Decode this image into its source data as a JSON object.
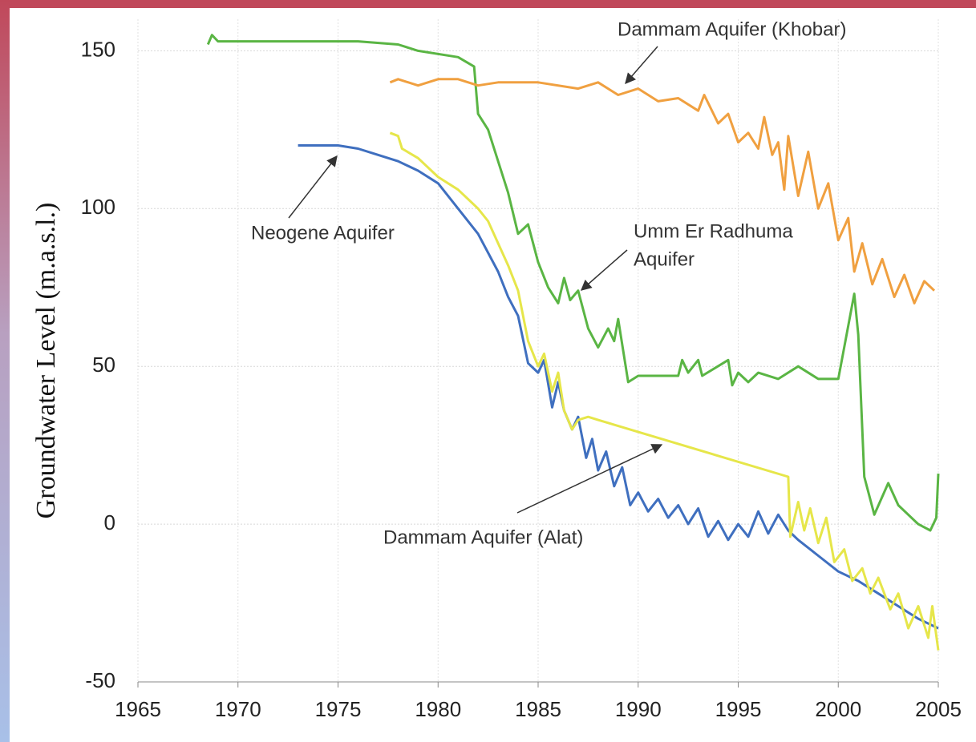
{
  "chart_data": {
    "type": "line",
    "y_label": "Groundwater Level (m.a.s.l.)",
    "xlim": [
      1965,
      2005
    ],
    "xticks": [
      1965,
      1970,
      1975,
      1980,
      1985,
      1990,
      1995,
      2000,
      2005
    ],
    "ylim": [
      -50,
      160
    ],
    "yticks": [
      -50,
      0,
      50,
      100,
      150
    ],
    "grid": true,
    "series": [
      {
        "color": "#5ab544",
        "x": [
          1968.5,
          1968.7,
          1969,
          1972,
          1976,
          1978,
          1979,
          1981,
          1981.8,
          1982,
          1982.5,
          1983,
          1983.5,
          1984,
          1984.5,
          1985,
          1985.5,
          1986,
          1986.3,
          1986.6,
          1987,
          1987.5,
          1988,
          1988.5,
          1988.8,
          1989,
          1989.5,
          1990,
          1992,
          1992.2,
          1992.5,
          1993,
          1993.2,
          1994.5,
          1994.7,
          1995,
          1995.5,
          1996,
          1997,
          1998,
          1999,
          2000,
          2000.8,
          2001,
          2001.3,
          2001.8,
          2002.5,
          2003,
          2004,
          2004.6,
          2004.9,
          2005
        ],
        "values": [
          152,
          155,
          153,
          153,
          153,
          152,
          150,
          148,
          145,
          130,
          125,
          115,
          105,
          92,
          95,
          83,
          75,
          70,
          78,
          71,
          74,
          62,
          56,
          62,
          58,
          65,
          45,
          47,
          47,
          52,
          48,
          52,
          47,
          52,
          44,
          48,
          45,
          48,
          46,
          50,
          46,
          46,
          73,
          60,
          15,
          3,
          13,
          6,
          0,
          -2,
          2,
          16
        ]
      },
      {
        "color": "#f0a040",
        "x": [
          1977.6,
          1978,
          1979,
          1980,
          1981,
          1982,
          1983,
          1985,
          1987,
          1988,
          1989,
          1990,
          1991,
          1992,
          1993,
          1993.3,
          1994,
          1994.5,
          1995,
          1995.5,
          1996,
          1996.3,
          1996.7,
          1997,
          1997.3,
          1997.5,
          1998,
          1998.5,
          1999,
          1999.5,
          2000,
          2000.5,
          2000.8,
          2001.2,
          2001.7,
          2002.2,
          2002.8,
          2003.3,
          2003.8,
          2004.3,
          2004.8
        ],
        "values": [
          140,
          141,
          139,
          141,
          141,
          139,
          140,
          140,
          138,
          140,
          136,
          138,
          134,
          135,
          131,
          136,
          127,
          130,
          121,
          124,
          119,
          129,
          117,
          121,
          106,
          123,
          104,
          118,
          100,
          108,
          90,
          97,
          80,
          89,
          76,
          84,
          72,
          79,
          70,
          77,
          74
        ]
      },
      {
        "color": "#3f6fbf",
        "x": [
          1973,
          1975,
          1976,
          1977,
          1978,
          1979,
          1980,
          1981,
          1982,
          1983,
          1983.5,
          1984,
          1984.5,
          1985,
          1985.3,
          1985.7,
          1986,
          1986.3,
          1986.7,
          1987,
          1987.4,
          1987.7,
          1988,
          1988.4,
          1988.8,
          1989.2,
          1989.6,
          1990,
          1990.5,
          1991,
          1991.5,
          1992,
          1992.5,
          1993,
          1993.5,
          1994,
          1994.5,
          1995,
          1995.5,
          1996,
          1996.5,
          1997,
          1997.5,
          1998,
          1999,
          2000,
          2001,
          2002,
          2003,
          2004,
          2005
        ],
        "values": [
          120,
          120,
          119,
          117,
          115,
          112,
          108,
          100,
          92,
          80,
          72,
          66,
          51,
          48,
          52,
          37,
          45,
          36,
          30,
          34,
          21,
          27,
          17,
          23,
          12,
          18,
          6,
          10,
          4,
          8,
          2,
          6,
          0,
          5,
          -4,
          1,
          -5,
          0,
          -4,
          4,
          -3,
          3,
          -2,
          -5,
          -10,
          -15,
          -18,
          -22,
          -26,
          -30,
          -33
        ]
      },
      {
        "color": "#e6e64a",
        "x": [
          1977.6,
          1978,
          1978.2,
          1979,
          1980,
          1981,
          1982,
          1982.5,
          1983,
          1983.5,
          1984,
          1984.5,
          1985,
          1985.3,
          1985.7,
          1986,
          1986.3,
          1986.7,
          1987,
          1987.5,
          1988,
          1997.5,
          1997.6,
          1998,
          1998.3,
          1998.6,
          1999,
          1999.4,
          1999.8,
          2000.3,
          2000.7,
          2001.2,
          2001.6,
          2002,
          2002.6,
          2003,
          2003.5,
          2004,
          2004.5,
          2004.7,
          2005
        ],
        "values": [
          124,
          123,
          119,
          116,
          110,
          106,
          100,
          96,
          89,
          82,
          74,
          58,
          50,
          54,
          42,
          48,
          36,
          30,
          33,
          34,
          33,
          15,
          -4,
          7,
          -2,
          5,
          -6,
          2,
          -12,
          -8,
          -18,
          -14,
          -22,
          -17,
          -27,
          -22,
          -33,
          -26,
          -36,
          -26,
          -40
        ]
      }
    ],
    "annotations": [
      {
        "lines": [
          "Dammam Aquifer (Khobar)"
        ]
      },
      {
        "lines": [
          "Neogene Aquifer"
        ]
      },
      {
        "lines": [
          "Umm Er Radhuma",
          "Aquifer"
        ]
      },
      {
        "lines": [
          "Dammam Aquifer (Alat)"
        ]
      }
    ]
  }
}
